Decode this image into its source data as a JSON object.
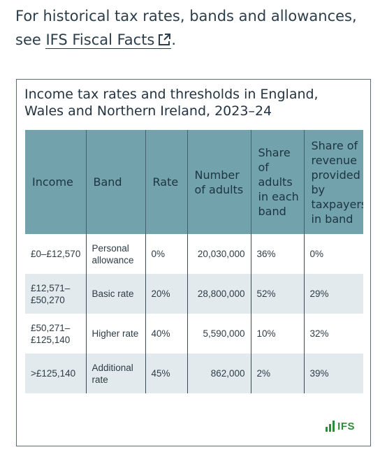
{
  "intro": {
    "text": "For historical tax rates, bands and allowances, see",
    "link_label": "IFS Fiscal Facts",
    "trailing": "."
  },
  "card": {
    "title": "Income tax rates and thresholds in England, Wales and Northern Ireland, 2023–24"
  },
  "table": {
    "headers": {
      "income": "Income",
      "band": "Band",
      "rate": "Rate",
      "number": "Number of adults",
      "share_adults": "Share of adults in each band",
      "share_revenue": "Share of revenue provided by taxpayers in band"
    },
    "rows": [
      {
        "income": "£0–£12,570",
        "band": "Personal allowance",
        "rate": "0%",
        "number": "20,030,000",
        "share_adults": "36%",
        "share_revenue": "0%"
      },
      {
        "income": "£12,571–£50,270",
        "band": "Basic rate",
        "rate": "20%",
        "number": "28,800,000",
        "share_adults": "52%",
        "share_revenue": "29%"
      },
      {
        "income": "£50,271–£125,140",
        "band": "Higher rate",
        "rate": "40%",
        "number": "5,590,000",
        "share_adults": "10%",
        "share_revenue": "32%"
      },
      {
        "income": ">£125,140",
        "band": "Additional rate",
        "rate": "45%",
        "number": "862,000",
        "share_adults": "2%",
        "share_revenue": "39%"
      }
    ]
  },
  "logo": {
    "text": "IFS",
    "icon": "bar-chart-icon",
    "color": "#2e8b3a"
  },
  "colors": {
    "header_bg": "#72a2ac",
    "alt_row_bg": "#e2eaee"
  }
}
